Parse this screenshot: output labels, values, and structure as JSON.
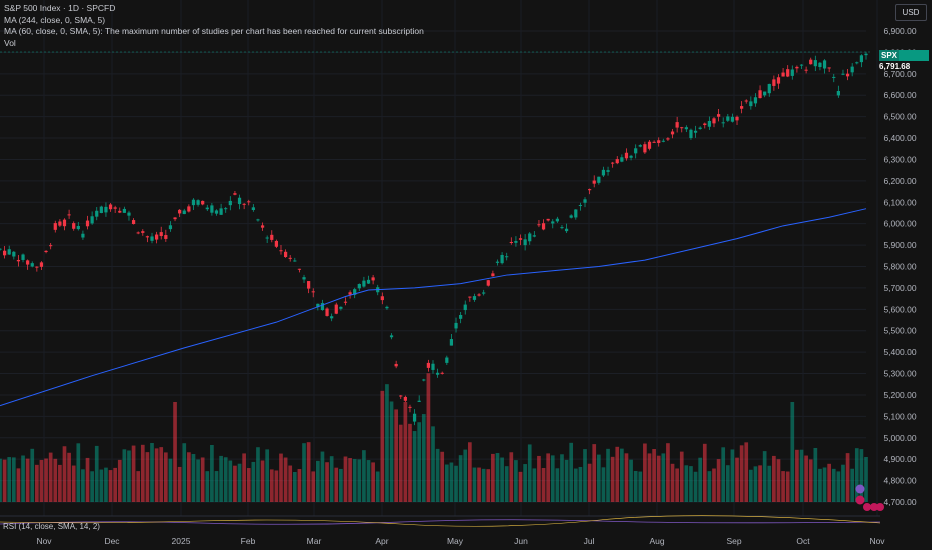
{
  "legend": {
    "title": "S&P 500 Index · 1D · SPCFD",
    "ma1": "MA (244, close, 0, SMA, 5)",
    "ma2": "MA (60, close, 0, SMA, 5): The maximum number of studies per chart has been reached for current subscription",
    "vol": "Vol"
  },
  "currency_button": "USD",
  "price_badge": {
    "symbol": "SPX",
    "price": "6,791.68"
  },
  "rsi_label": "RSI (14, close, SMA, 14, 2)",
  "colors": {
    "up": "#089981",
    "down": "#f23645",
    "ma": "#2962ff",
    "background": "#131313"
  },
  "chart_data": {
    "type": "candlestick",
    "title": "S&P 500 Index · 1D · SPCFD",
    "y_axis": {
      "ticks": [
        4700,
        4800,
        4900,
        5000,
        5100,
        5200,
        5300,
        5400,
        5500,
        5600,
        5700,
        5800,
        5900,
        6000,
        6100,
        6200,
        6300,
        6400,
        6500,
        6600,
        6700,
        6800,
        6900
      ],
      "tick_labels": [
        "4,700.00",
        "4,800.00",
        "4,900.00",
        "5,000.00",
        "5,100.00",
        "5,200.00",
        "5,300.00",
        "5,400.00",
        "5,500.00",
        "5,600.00",
        "5,700.00",
        "5,800.00",
        "5,900.00",
        "6,000.00",
        "6,100.00",
        "6,200.00",
        "6,300.00",
        "6,400.00",
        "6,500.00",
        "6,600.00",
        "6,700.00",
        "6,800.00",
        "6,900.00"
      ]
    },
    "x_axis": {
      "tick_labels": [
        "Nov",
        "Dec",
        "2025",
        "Feb",
        "Mar",
        "Apr",
        "May",
        "Jun",
        "Jul",
        "Aug",
        "Sep",
        "Oct",
        "Nov"
      ],
      "tick_positions": [
        0,
        1,
        2,
        3,
        4,
        5,
        6,
        7,
        8,
        9,
        10,
        11,
        12
      ]
    },
    "price_path": [
      [
        0,
        5880
      ],
      [
        3,
        5860
      ],
      [
        6,
        5820
      ],
      [
        9,
        5800
      ],
      [
        12,
        5980
      ],
      [
        15,
        6020
      ],
      [
        18,
        5960
      ],
      [
        21,
        6050
      ],
      [
        24,
        6090
      ],
      [
        27,
        6070
      ],
      [
        30,
        5980
      ],
      [
        33,
        5920
      ],
      [
        36,
        5950
      ],
      [
        39,
        6040
      ],
      [
        42,
        6100
      ],
      [
        45,
        6080
      ],
      [
        48,
        6060
      ],
      [
        51,
        6120
      ],
      [
        54,
        6090
      ],
      [
        57,
        5980
      ],
      [
        60,
        5900
      ],
      [
        63,
        5850
      ],
      [
        66,
        5760
      ],
      [
        69,
        5620
      ],
      [
        72,
        5580
      ],
      [
        75,
        5640
      ],
      [
        78,
        5700
      ],
      [
        81,
        5760
      ],
      [
        84,
        5590
      ],
      [
        87,
        5200
      ],
      [
        90,
        5100
      ],
      [
        93,
        5350
      ],
      [
        96,
        5280
      ],
      [
        99,
        5520
      ],
      [
        102,
        5650
      ],
      [
        105,
        5690
      ],
      [
        108,
        5800
      ],
      [
        111,
        5900
      ],
      [
        114,
        5920
      ],
      [
        117,
        5980
      ],
      [
        120,
        6020
      ],
      [
        123,
        5990
      ],
      [
        126,
        6080
      ],
      [
        129,
        6180
      ],
      [
        132,
        6260
      ],
      [
        135,
        6300
      ],
      [
        138,
        6330
      ],
      [
        141,
        6370
      ],
      [
        144,
        6400
      ],
      [
        147,
        6450
      ],
      [
        150,
        6420
      ],
      [
        153,
        6460
      ],
      [
        156,
        6500
      ],
      [
        159,
        6480
      ],
      [
        162,
        6560
      ],
      [
        165,
        6600
      ],
      [
        168,
        6650
      ],
      [
        171,
        6700
      ],
      [
        174,
        6720
      ],
      [
        177,
        6760
      ],
      [
        180,
        6740
      ],
      [
        182,
        6600
      ],
      [
        183,
        6680
      ],
      [
        186,
        6740
      ],
      [
        188,
        6792
      ]
    ],
    "ma_line": [
      [
        0,
        5150
      ],
      [
        20,
        5290
      ],
      [
        40,
        5420
      ],
      [
        60,
        5540
      ],
      [
        70,
        5620
      ],
      [
        75,
        5660
      ],
      [
        80,
        5690
      ],
      [
        90,
        5700
      ],
      [
        100,
        5720
      ],
      [
        110,
        5760
      ],
      [
        120,
        5780
      ],
      [
        130,
        5800
      ],
      [
        140,
        5830
      ],
      [
        150,
        5880
      ],
      [
        160,
        5930
      ],
      [
        170,
        5990
      ],
      [
        180,
        6030
      ],
      [
        188,
        6070
      ]
    ],
    "last_price": 6791.68,
    "last_symbol": "SPX"
  }
}
